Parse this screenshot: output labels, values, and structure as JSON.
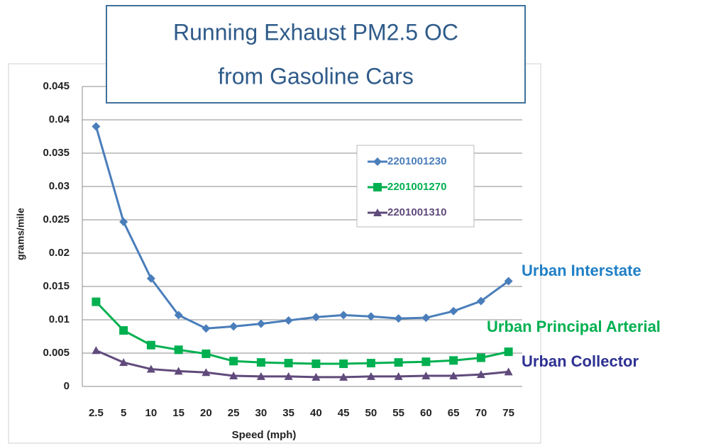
{
  "chart_data": {
    "type": "line",
    "title": [
      "Running Exhaust PM2.5 OC",
      "from Gasoline Cars"
    ],
    "xlabel": "Speed (mph)",
    "ylabel": "grams/mile",
    "categories": [
      "2.5",
      "5",
      "10",
      "15",
      "20",
      "25",
      "30",
      "35",
      "40",
      "45",
      "50",
      "55",
      "60",
      "65",
      "70",
      "75"
    ],
    "series": [
      {
        "name": "2201001230",
        "color": "#4a7ebb",
        "marker": "diamond",
        "values": [
          0.039,
          0.0247,
          0.0162,
          0.0107,
          0.0087,
          0.009,
          0.0094,
          0.0099,
          0.0104,
          0.0107,
          0.0105,
          0.0102,
          0.0103,
          0.0113,
          0.0128,
          0.0158
        ]
      },
      {
        "name": "2201001270",
        "color": "#00b050",
        "marker": "square",
        "values": [
          0.0127,
          0.0084,
          0.0062,
          0.0055,
          0.0049,
          0.0038,
          0.0036,
          0.0035,
          0.0034,
          0.0034,
          0.0035,
          0.0036,
          0.0037,
          0.0039,
          0.0043,
          0.0052
        ]
      },
      {
        "name": "2201001310",
        "color": "#604a7b",
        "marker": "triangle",
        "values": [
          0.0054,
          0.0036,
          0.0026,
          0.0023,
          0.0021,
          0.0016,
          0.0015,
          0.0015,
          0.0014,
          0.0014,
          0.0015,
          0.0015,
          0.0016,
          0.0016,
          0.0018,
          0.0022
        ]
      }
    ],
    "ylim": [
      0,
      0.045
    ],
    "yticks": [
      0,
      0.005,
      0.01,
      0.015,
      0.02,
      0.025,
      0.03,
      0.035,
      0.04,
      0.045
    ],
    "grid": true,
    "annotations": [
      {
        "text": "Urban Interstate",
        "color": "#1f7fc6"
      },
      {
        "text": "Urban Principal Arterial",
        "color": "#00b050"
      },
      {
        "text": "Urban Collector",
        "color": "#2e3192"
      }
    ]
  }
}
